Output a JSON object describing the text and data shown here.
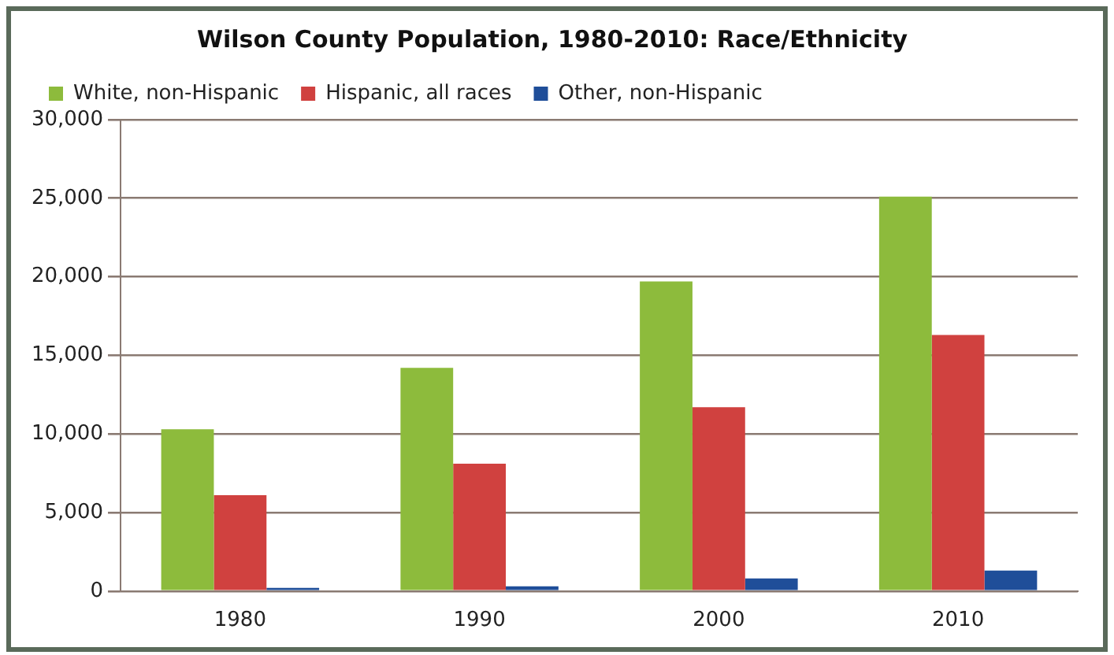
{
  "chart_data": {
    "type": "bar",
    "title": "Wilson County Population, 1980-2010: Race/Ethnicity",
    "categories": [
      "1980",
      "1990",
      "2000",
      "2010"
    ],
    "series": [
      {
        "name": "White, non-Hispanic",
        "color": "#8dbb3c",
        "values": [
          10300,
          14200,
          19700,
          25100
        ]
      },
      {
        "name": "Hispanic, all races",
        "color": "#d0413f",
        "values": [
          6100,
          8100,
          11700,
          16300
        ]
      },
      {
        "name": "Other, non-Hispanic",
        "color": "#1f4e99",
        "values": [
          200,
          300,
          800,
          1300
        ]
      }
    ],
    "ylim": [
      0,
      30000
    ],
    "yticks": [
      0,
      {
        "value": 5000,
        "label": "5,000"
      },
      {
        "value": 10000,
        "label": "10,000"
      },
      {
        "value": 15000,
        "label": "15,000"
      },
      {
        "value": 20000,
        "label": "20,000"
      },
      {
        "value": 25000,
        "label": "25,000"
      },
      {
        "value": 30000,
        "label": "30,000"
      }
    ],
    "grid": "y",
    "legend": "top"
  }
}
